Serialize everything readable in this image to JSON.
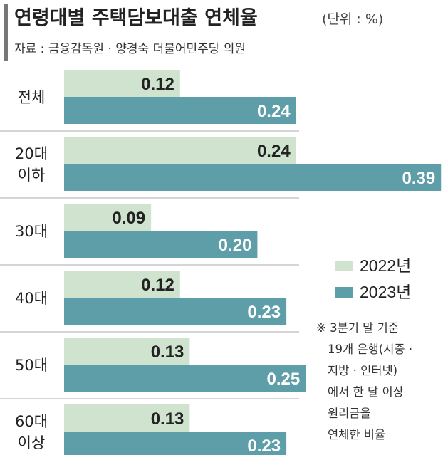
{
  "title": "연령대별 주택담보대출 연체율",
  "unit": "(단위 : %)",
  "source": "자료 : 금융감독원 ·  양경숙 더불어민주당 의원",
  "note_lines": [
    "※ 3분기 말 기준",
    "19개 은행(시중 ·",
    "지방 · 인터넷)",
    "에서 한 달 이상",
    "원리금을",
    "연체한 비율"
  ],
  "colors": {
    "series_2022": "#cfe3cf",
    "series_2023": "#5e9ea8",
    "label_2022": "#222222",
    "label_2023": "#ffffff",
    "separator": "#c7c7c7"
  },
  "chart_data": {
    "type": "bar",
    "orientation": "horizontal",
    "categories": [
      [
        "전체"
      ],
      [
        "20대",
        "이하"
      ],
      [
        "30대"
      ],
      [
        "40대"
      ],
      [
        "50대"
      ],
      [
        "60대",
        "이상"
      ]
    ],
    "series": [
      {
        "name": "2022년",
        "values": [
          0.12,
          0.24,
          0.09,
          0.12,
          0.13,
          0.13
        ],
        "labels": [
          "0.12",
          "0.24",
          "0.09",
          "0.12",
          "0.13",
          "0.13"
        ]
      },
      {
        "name": "2023년",
        "values": [
          0.24,
          0.39,
          0.2,
          0.23,
          0.25,
          0.23
        ],
        "labels": [
          "0.24",
          "0.39",
          "0.20",
          "0.23",
          "0.25",
          "0.23"
        ]
      }
    ],
    "legend_position": "right"
  }
}
